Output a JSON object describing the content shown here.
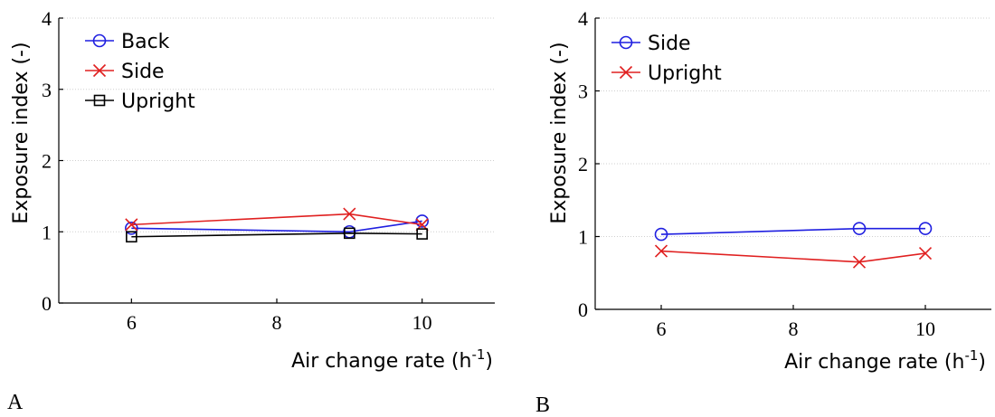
{
  "chart_data": [
    {
      "type": "line",
      "panel_label": "A",
      "xlabel": "Air change rate (h",
      "xlabel_sup": "-1",
      "xlabel_tail": ")",
      "ylabel": "Exposure index (-)",
      "xlim": [
        5,
        11
      ],
      "ylim": [
        0,
        4
      ],
      "xticks": [
        6,
        8,
        10
      ],
      "yticks": [
        0,
        1,
        2,
        3,
        4
      ],
      "grid": "horizontal",
      "legend": "top-left",
      "series": [
        {
          "name": "Back",
          "color": "#1f1fe0",
          "marker": "circle",
          "x": [
            6,
            9,
            10
          ],
          "y": [
            1.05,
            1.0,
            1.15
          ]
        },
        {
          "name": "Side",
          "color": "#e02020",
          "marker": "x",
          "x": [
            6,
            9,
            10
          ],
          "y": [
            1.1,
            1.25,
            1.1
          ]
        },
        {
          "name": "Upright",
          "color": "#000000",
          "marker": "square",
          "x": [
            6,
            9,
            10
          ],
          "y": [
            0.93,
            0.98,
            0.97
          ]
        }
      ]
    },
    {
      "type": "line",
      "panel_label": "B",
      "xlabel": "Air change rate (h",
      "xlabel_sup": "-1",
      "xlabel_tail": ")",
      "ylabel": "Exposure index (-)",
      "xlim": [
        5,
        11
      ],
      "ylim": [
        0,
        4
      ],
      "xticks": [
        6,
        8,
        10
      ],
      "yticks": [
        0,
        1,
        2,
        3,
        4
      ],
      "grid": "horizontal",
      "legend": "top-left",
      "series": [
        {
          "name": "Side",
          "color": "#1f1fe0",
          "marker": "circle",
          "x": [
            6,
            9,
            10
          ],
          "y": [
            1.03,
            1.11,
            1.11
          ]
        },
        {
          "name": "Upright",
          "color": "#e02020",
          "marker": "x",
          "x": [
            6,
            9,
            10
          ],
          "y": [
            0.8,
            0.65,
            0.77
          ]
        }
      ]
    }
  ]
}
